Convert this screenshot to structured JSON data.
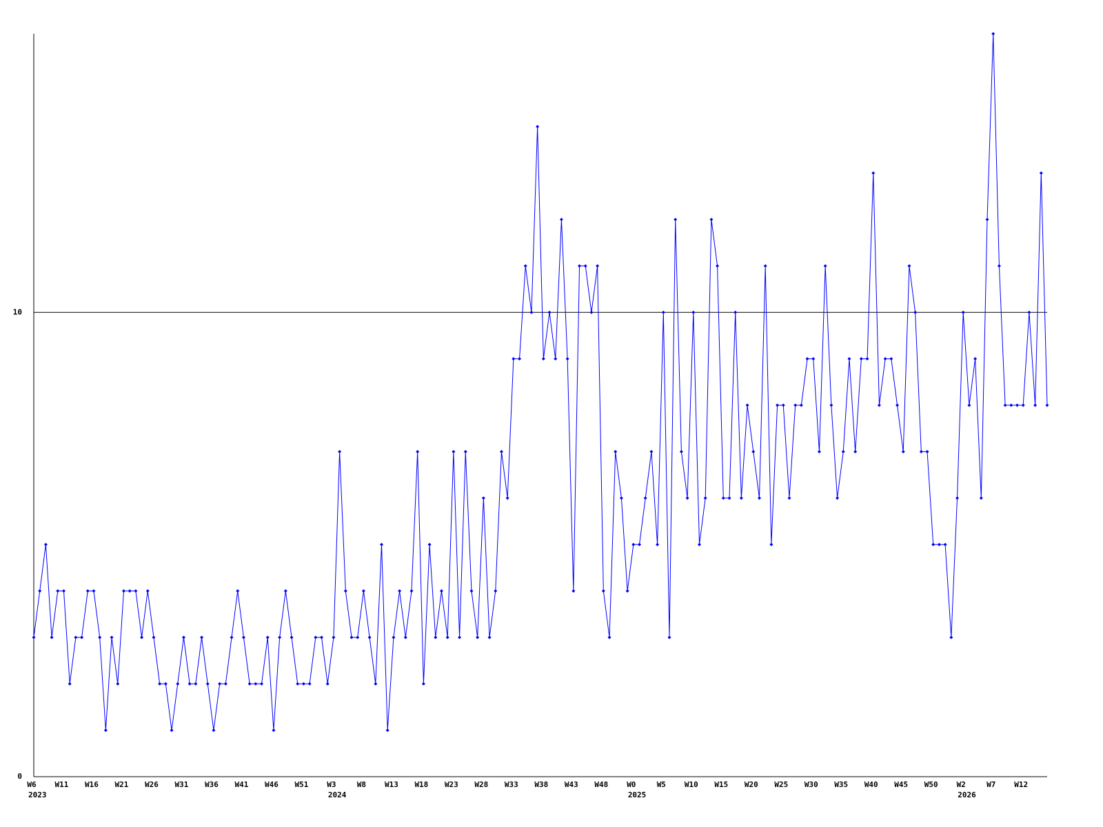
{
  "chart_data": {
    "type": "line",
    "categories": [
      "W6",
      null,
      null,
      null,
      null,
      "W11",
      null,
      null,
      null,
      null,
      "W16",
      null,
      null,
      null,
      null,
      "W21",
      null,
      null,
      null,
      null,
      "W26",
      null,
      null,
      null,
      null,
      "W31",
      null,
      null,
      null,
      null,
      "W36",
      null,
      null,
      null,
      null,
      "W41",
      null,
      null,
      null,
      null,
      "W46",
      null,
      null,
      null,
      null,
      "W51",
      null,
      null,
      null,
      null,
      "W3",
      null,
      null,
      null,
      null,
      "W8",
      null,
      null,
      null,
      null,
      "W13",
      null,
      null,
      null,
      null,
      "W18",
      null,
      null,
      null,
      null,
      "W23",
      null,
      null,
      null,
      null,
      "W28",
      null,
      null,
      null,
      null,
      "W33",
      null,
      null,
      null,
      null,
      "W38",
      null,
      null,
      null,
      null,
      "W43",
      null,
      null,
      null,
      null,
      "W48",
      null,
      null,
      null,
      null,
      "W0",
      null,
      null,
      null,
      null,
      "W5",
      null,
      null,
      null,
      null,
      "W10",
      null,
      null,
      null,
      null,
      "W15",
      null,
      null,
      null,
      null,
      "W20",
      null,
      null,
      null,
      null,
      "W25",
      null,
      null,
      null,
      null,
      "W30",
      null,
      null,
      null,
      null,
      "W35",
      null,
      null,
      null,
      null,
      "W40",
      null,
      null,
      null,
      null,
      "W45",
      null,
      null,
      null,
      null,
      "W50",
      null,
      null,
      null,
      null,
      "W2",
      null,
      null,
      null,
      null,
      "W7",
      null,
      null,
      null,
      null,
      "W12",
      null,
      null,
      null,
      null
    ],
    "category_years": [
      "2023",
      null,
      null,
      null,
      null,
      null,
      null,
      null,
      null,
      null,
      null,
      null,
      null,
      null,
      null,
      null,
      null,
      null,
      null,
      null,
      null,
      null,
      null,
      null,
      null,
      null,
      null,
      null,
      null,
      null,
      null,
      null,
      null,
      null,
      null,
      null,
      null,
      null,
      null,
      null,
      null,
      null,
      null,
      null,
      null,
      null,
      null,
      null,
      null,
      null,
      "2024",
      null,
      null,
      null,
      null,
      null,
      null,
      null,
      null,
      null,
      null,
      null,
      null,
      null,
      null,
      null,
      null,
      null,
      null,
      null,
      null,
      null,
      null,
      null,
      null,
      null,
      null,
      null,
      null,
      null,
      null,
      null,
      null,
      null,
      null,
      null,
      null,
      null,
      null,
      null,
      null,
      null,
      null,
      null,
      null,
      null,
      null,
      null,
      null,
      null,
      "2025",
      null,
      null,
      null,
      null,
      null,
      null,
      null,
      null,
      null,
      null,
      null,
      null,
      null,
      null,
      null,
      null,
      null,
      null,
      null,
      null,
      null,
      null,
      null,
      null,
      null,
      null,
      null,
      null,
      null,
      null,
      null,
      null,
      null,
      null,
      null,
      null,
      null,
      null,
      null,
      null,
      null,
      null,
      null,
      null,
      null,
      null,
      null,
      null,
      null,
      null,
      null,
      null,
      null,
      null,
      "2026",
      null,
      null,
      null,
      null,
      null,
      null,
      null,
      null,
      null,
      null,
      null,
      null,
      null,
      null
    ],
    "series": [
      {
        "color": "#0000ff",
        "values": [
          3,
          4,
          5,
          3,
          4,
          4,
          2,
          3,
          3,
          4,
          4,
          3,
          1,
          3,
          2,
          4,
          4,
          4,
          3,
          4,
          3,
          2,
          2,
          1,
          2,
          3,
          2,
          2,
          3,
          2,
          1,
          2,
          2,
          3,
          4,
          3,
          2,
          2,
          2,
          3,
          1,
          3,
          4,
          3,
          2,
          2,
          2,
          3,
          3,
          2,
          3,
          7,
          4,
          3,
          3,
          4,
          3,
          2,
          5,
          1,
          3,
          4,
          3,
          4,
          7,
          2,
          5,
          3,
          4,
          3,
          7,
          3,
          7,
          4,
          3,
          6,
          3,
          4,
          7,
          6,
          9,
          9,
          11,
          10,
          14,
          9,
          10,
          9,
          12,
          9,
          4,
          11,
          11,
          10,
          11,
          4,
          3,
          7,
          6,
          4,
          5,
          5,
          6,
          7,
          5,
          10,
          3,
          12,
          7,
          6,
          10,
          5,
          6,
          12,
          11,
          6,
          6,
          10,
          6,
          8,
          7,
          6,
          11,
          5,
          8,
          8,
          6,
          8,
          8,
          9,
          9,
          7,
          11,
          8,
          6,
          7,
          9,
          7,
          9,
          9,
          13,
          8,
          9,
          9,
          8,
          7,
          11,
          10,
          7,
          7,
          5,
          5,
          5,
          3,
          6,
          10,
          8,
          9,
          6,
          12,
          16,
          11,
          8,
          8,
          8,
          8,
          10,
          8,
          13,
          8
        ]
      }
    ],
    "ylim": [
      0,
      16
    ],
    "yticks": [
      0,
      10
    ],
    "grid": true
  }
}
